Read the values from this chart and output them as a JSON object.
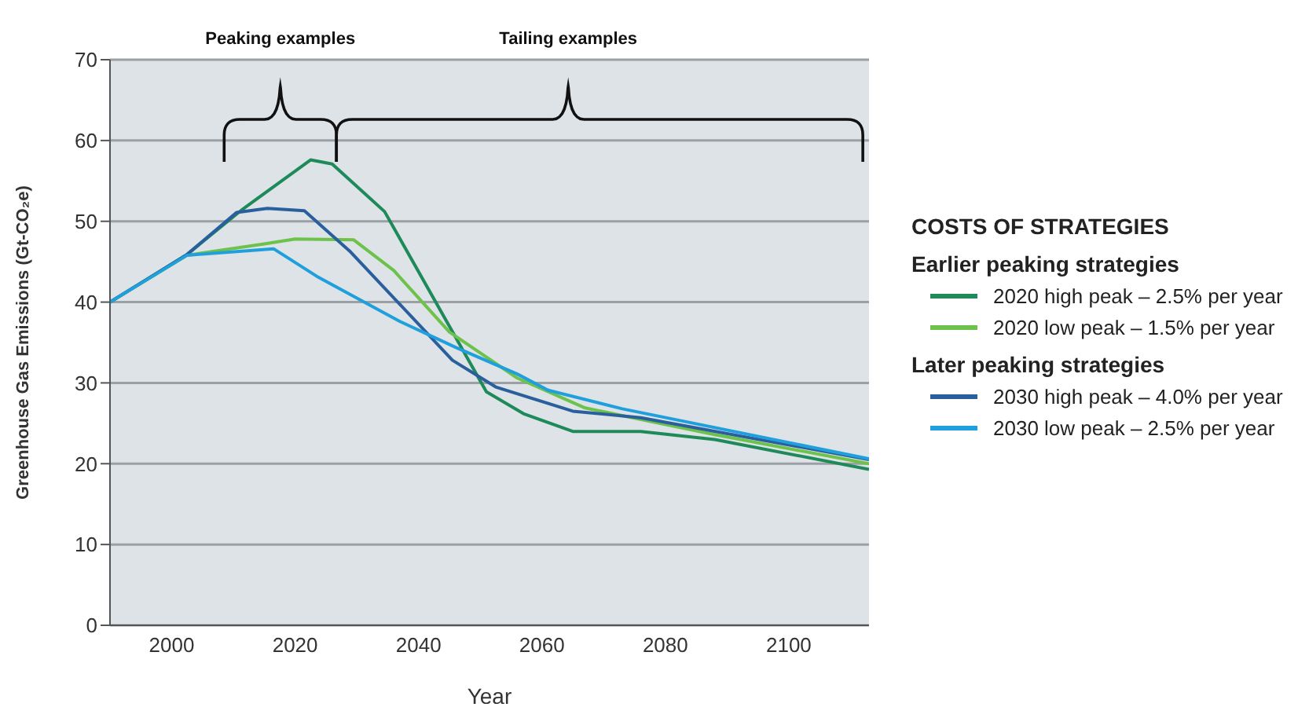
{
  "chart_data": {
    "type": "line",
    "xlabel": "Year",
    "ylabel": "Greenhouse Gas Emissions (Gt-CO₂e)",
    "legend_title": "COSTS OF STRATEGIES",
    "annotations": [
      "Peaking examples",
      "Tailing examples",
      "Earlier peaking strategies",
      "Later peaking strategies"
    ],
    "xlim": [
      1990,
      2113
    ],
    "xticks": [
      2000,
      2020,
      2040,
      2060,
      2080,
      2100
    ],
    "ylim": [
      0,
      70
    ],
    "yticks": [
      0,
      10,
      20,
      30,
      40,
      50,
      60,
      70
    ],
    "grid": "y",
    "legend": "right",
    "series": [
      {
        "name": "2020 high peak – 2.5% per year",
        "color": "#1e8a5a",
        "x": [
          1990,
          2002.5,
          2011.5,
          2022.5,
          2026,
          2034.5,
          2051,
          2057,
          2065,
          2076,
          2088,
          2113
        ],
        "values": [
          40,
          45.9,
          51.5,
          57.6,
          57.1,
          51.2,
          28.9,
          26.2,
          24,
          24,
          23,
          19.3
        ]
      },
      {
        "name": "2020 low peak – 1.5% per year",
        "color": "#6cc24a",
        "x": [
          1990,
          2002.5,
          2015,
          2020,
          2029.5,
          2036,
          2045,
          2056,
          2067,
          2088,
          2113
        ],
        "values": [
          40,
          45.8,
          47.2,
          47.8,
          47.7,
          43.9,
          36.3,
          30.6,
          26.9,
          23.6,
          20
        ]
      },
      {
        "name": "2030 high peak – 4.0% per year",
        "color": "#2a5f9e",
        "x": [
          1990,
          2002.5,
          2010.5,
          2015.5,
          2021.5,
          2029,
          2045.5,
          2052.5,
          2065,
          2076,
          2113
        ],
        "values": [
          40,
          45.9,
          51.1,
          51.6,
          51.3,
          46.2,
          32.8,
          29.5,
          26.5,
          25.7,
          20.5
        ]
      },
      {
        "name": "2030 low peak – 2.5% per year",
        "color": "#1fa0dc",
        "x": [
          1990,
          2002.5,
          2016.5,
          2023.5,
          2037,
          2046,
          2056,
          2061,
          2073,
          2113
        ],
        "values": [
          40,
          45.8,
          46.6,
          43.2,
          37.6,
          34.4,
          31.1,
          29.1,
          26.8,
          20.6
        ]
      }
    ]
  }
}
